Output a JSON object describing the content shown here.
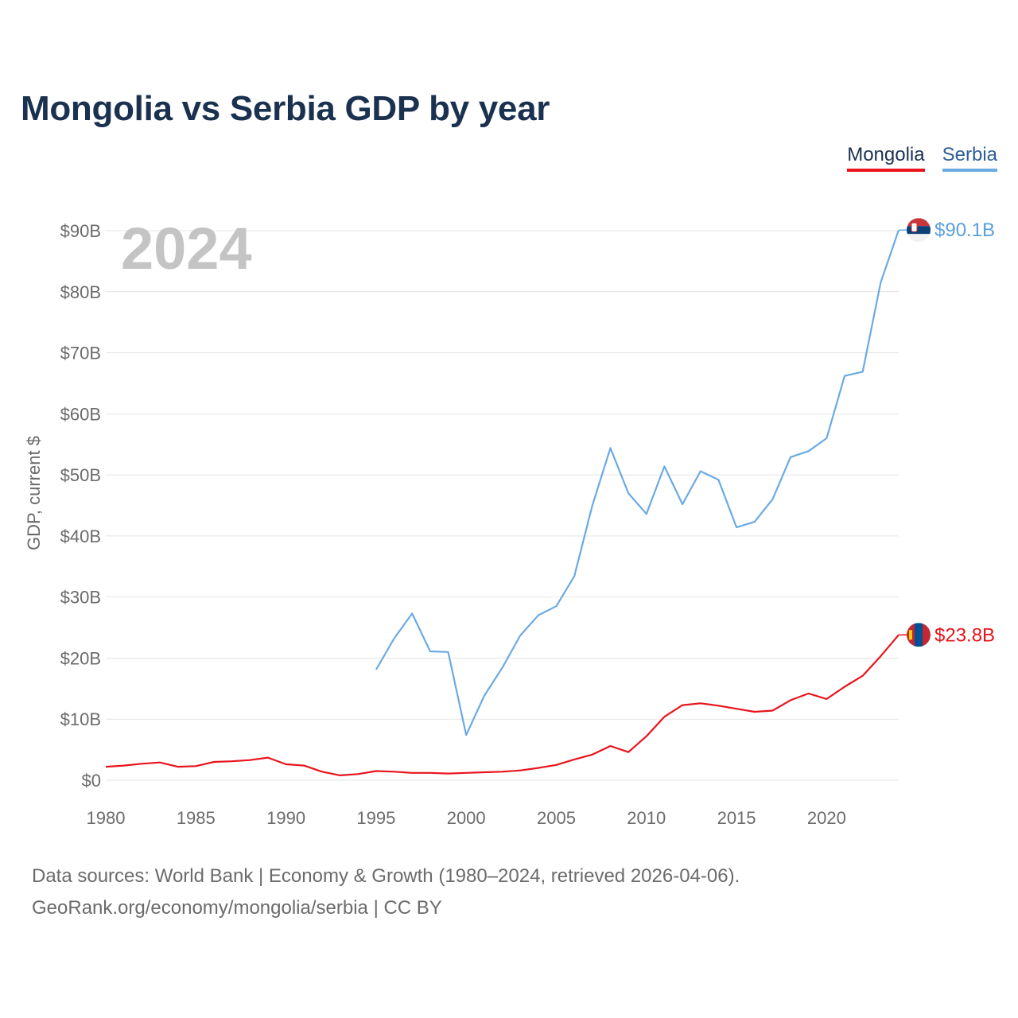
{
  "chart_data": {
    "type": "line",
    "title": "Mongolia vs Serbia GDP by year",
    "ylabel": "GDP, current $",
    "xlabel": "",
    "xlim": [
      1980,
      2024
    ],
    "ylim": [
      0,
      90
    ],
    "year_label": "2024",
    "x_ticks": [
      1980,
      1985,
      1990,
      1995,
      2000,
      2005,
      2010,
      2015,
      2020
    ],
    "x_tick_labels": [
      "1980",
      "1985",
      "1990",
      "1995",
      "2000",
      "2005",
      "2010",
      "2015",
      "2020"
    ],
    "y_ticks": [
      0,
      10,
      20,
      30,
      40,
      50,
      60,
      70,
      80,
      90
    ],
    "y_tick_labels": [
      "$0",
      "$10B",
      "$20B",
      "$30B",
      "$40B",
      "$50B",
      "$60B",
      "$70B",
      "$80B",
      "$90B"
    ],
    "series": [
      {
        "name": "Mongolia",
        "color": "#e8141c",
        "end_label": "$23.8B",
        "x": [
          1980,
          1981,
          1982,
          1983,
          1984,
          1985,
          1986,
          1987,
          1988,
          1989,
          1990,
          1991,
          1992,
          1993,
          1994,
          1995,
          1996,
          1997,
          1998,
          1999,
          2000,
          2001,
          2002,
          2003,
          2004,
          2005,
          2006,
          2007,
          2008,
          2009,
          2010,
          2011,
          2012,
          2013,
          2014,
          2015,
          2016,
          2017,
          2018,
          2019,
          2020,
          2021,
          2022,
          2023,
          2024
        ],
        "values": [
          2.2,
          2.4,
          2.7,
          2.9,
          2.2,
          2.3,
          3.0,
          3.1,
          3.3,
          3.7,
          2.6,
          2.4,
          1.4,
          0.8,
          1.0,
          1.5,
          1.4,
          1.2,
          1.2,
          1.1,
          1.2,
          1.3,
          1.4,
          1.6,
          2.0,
          2.5,
          3.4,
          4.2,
          5.6,
          4.6,
          7.2,
          10.4,
          12.3,
          12.6,
          12.2,
          11.7,
          11.2,
          11.4,
          13.1,
          14.2,
          13.3,
          15.3,
          17.1,
          20.3,
          23.8
        ]
      },
      {
        "name": "Serbia",
        "color": "#6aaae3",
        "end_label": "$90.1B",
        "x": [
          1995,
          1996,
          1997,
          1998,
          1999,
          2000,
          2001,
          2002,
          2003,
          2004,
          2005,
          2006,
          2007,
          2008,
          2009,
          2010,
          2011,
          2012,
          2013,
          2014,
          2015,
          2016,
          2017,
          2018,
          2019,
          2020,
          2021,
          2022,
          2023,
          2024
        ],
        "values": [
          18.1,
          23.2,
          27.3,
          21.1,
          21.0,
          7.4,
          13.8,
          18.4,
          23.7,
          27.0,
          28.5,
          33.4,
          45.0,
          54.4,
          47.0,
          43.6,
          51.4,
          45.2,
          50.6,
          49.2,
          41.4,
          42.3,
          46.0,
          52.9,
          53.9,
          56.0,
          66.2,
          66.9,
          81.5,
          90.1
        ]
      }
    ],
    "legend": [
      "Mongolia",
      "Serbia"
    ],
    "legend_position": "top-right",
    "grid": true
  },
  "footer": {
    "line1": "Data sources: World Bank | Economy & Growth (1980–2024, retrieved 2026-04-06).",
    "line2": "GeoRank.org/economy/mongolia/serbia | CC BY"
  }
}
